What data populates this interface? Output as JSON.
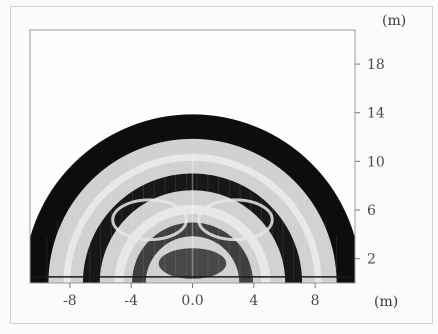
{
  "chart_data": {
    "type": "heatmap",
    "title": "",
    "description_of_field": "grayscale wave-field snapshot: concentric semicircular wavefronts above a horizontal baseline",
    "x": {
      "unit_label": "(m)",
      "ticks": [
        "-8",
        "-4",
        "0.0",
        "4",
        "8"
      ],
      "tick_values": [
        -8,
        -4,
        0,
        4,
        8
      ],
      "range": [
        -10.6,
        10.6
      ]
    },
    "y": {
      "unit_label": "(m)",
      "ticks": [
        "2",
        "6",
        "10",
        "14",
        "18"
      ],
      "tick_values": [
        2,
        6,
        10,
        14,
        18
      ],
      "range": [
        0,
        20.8
      ],
      "axis_side": "right"
    },
    "wavefronts": [
      {
        "name": "outer dark front",
        "radius_m": 10.2,
        "width_m": 1.6,
        "intensity": -1.0
      },
      {
        "name": "bright ring",
        "radius_m": 8.2,
        "width_m": 0.45,
        "intensity": 0.55
      },
      {
        "name": "inner dark band",
        "radius_m": 6.6,
        "width_m": 1.1,
        "intensity": -0.8
      },
      {
        "name": "inner bright ring",
        "radius_m": 4.8,
        "width_m": 0.6,
        "intensity": 0.5
      },
      {
        "name": "core dark band",
        "radius_m": 3.5,
        "width_m": 0.9,
        "intensity": -0.6
      }
    ],
    "source_position_m": [
      0,
      0
    ],
    "grid": false,
    "legend": "none"
  },
  "colors": {
    "background": "#ffffff",
    "frame": "#9a9a9a",
    "ink": "#111111",
    "tick_text": "#4a4a4a"
  }
}
